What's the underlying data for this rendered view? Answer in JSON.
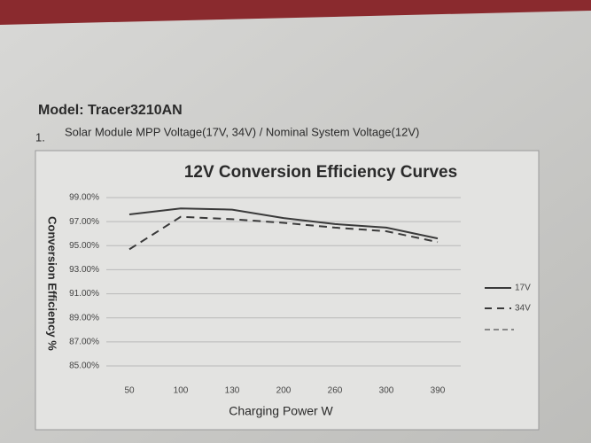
{
  "header": {
    "model": "Model: Tracer3210AN",
    "item_number": "1.",
    "item_text": "Solar Module MPP Voltage(17V, 34V) / Nominal System Voltage(12V)"
  },
  "chart_data": {
    "type": "line",
    "title": "12V Conversion Efficiency Curves",
    "x_label": "Charging Power W",
    "y_label": "Conversion Efficiency %",
    "categories": [
      "50",
      "100",
      "130",
      "200",
      "260",
      "300",
      "390"
    ],
    "series": [
      {
        "name": "17V",
        "color": "#3a3a3a",
        "dash": "solid",
        "values": [
          97.6,
          98.1,
          98.0,
          97.3,
          96.8,
          96.5,
          95.6
        ]
      },
      {
        "name": "34V",
        "color": "#3a3a3a",
        "dash": "dashed",
        "values": [
          94.7,
          97.4,
          97.2,
          96.9,
          96.5,
          96.2,
          95.3
        ]
      }
    ],
    "ylim": [
      85,
      99
    ],
    "yticks": [
      {
        "value": 85,
        "label": "85.00%"
      },
      {
        "value": 87,
        "label": "87.00%"
      },
      {
        "value": 89,
        "label": "89.00%"
      },
      {
        "value": 91,
        "label": "91.00%"
      },
      {
        "value": 93,
        "label": "93.00%"
      },
      {
        "value": 95,
        "label": "95.00%"
      },
      {
        "value": 97,
        "label": "97.00%"
      },
      {
        "value": 99,
        "label": "99.00%"
      }
    ],
    "grid": true,
    "legend": "right"
  }
}
